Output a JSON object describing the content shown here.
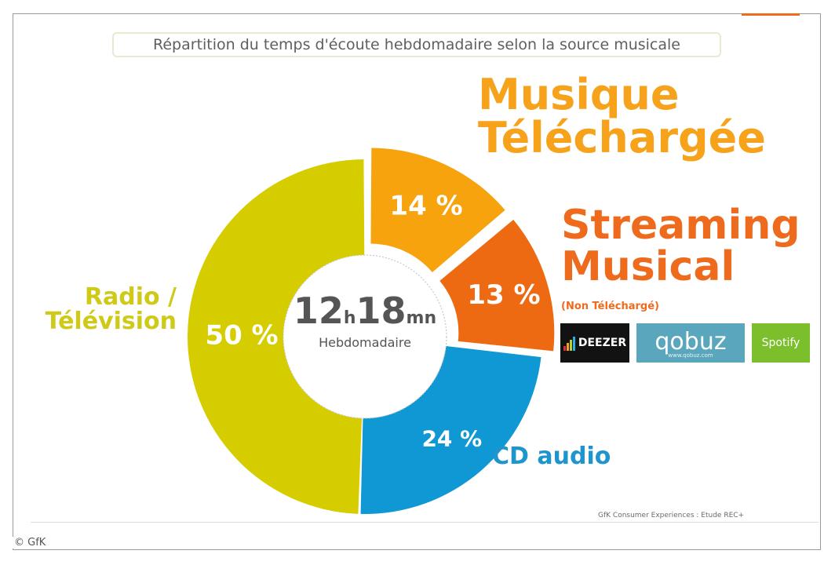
{
  "title": "Répartition du temps d'écoute hebdomadaire selon la source musicale",
  "labels": {
    "music_line1": "Musique",
    "music_line2": "Téléchargée",
    "streaming_line1": "Streaming",
    "streaming_line2": "Musical",
    "streaming_sub": "(Non Téléchargé)",
    "radio_line1": "Radio /",
    "radio_line2": "Télévision",
    "cd": "CD audio"
  },
  "center": {
    "hours": "12",
    "h_unit": "h",
    "minutes": "18",
    "mn_unit": "mn",
    "caption": "Hebdomadaire"
  },
  "logos": {
    "deezer": "DEEZER",
    "qobuz": "qobuz",
    "qobuz_sub": "www.qobuz.com",
    "spotify": "Spotify"
  },
  "source": "GfK Consumer Experiences : Etude REC+",
  "copyright": "© GfK",
  "colors": {
    "music": "#f7a30d",
    "streaming": "#ee6a12",
    "cd": "#0f98d4",
    "radio": "#d6cd00",
    "center_text": "#555555"
  },
  "chart_data": {
    "type": "pie",
    "donut": true,
    "categories": [
      "Musique Téléchargée",
      "Streaming Musical",
      "CD audio",
      "Radio / Télévision"
    ],
    "values": [
      14,
      13,
      24,
      50
    ],
    "value_labels": [
      "14 %",
      "13 %",
      "24 %",
      "50 %"
    ],
    "exploded": [
      true,
      true,
      false,
      false
    ],
    "center_label": "12h18mn Hebdomadaire"
  }
}
